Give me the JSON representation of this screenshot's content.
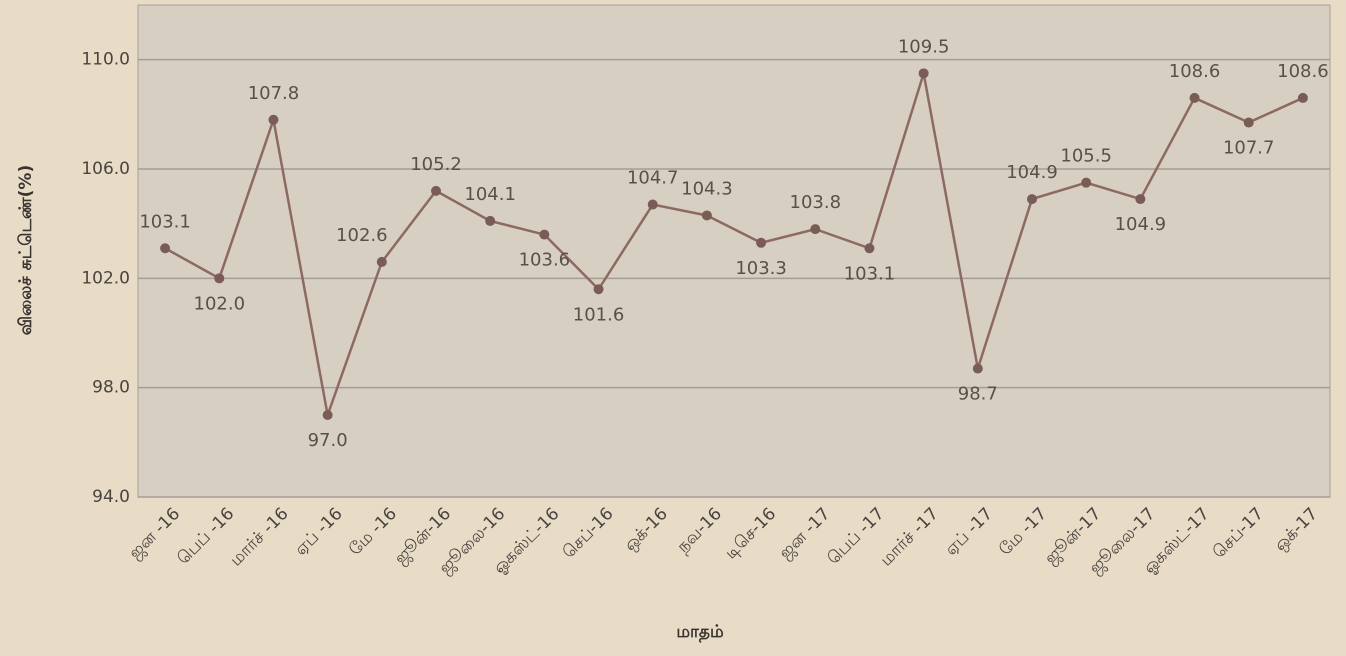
{
  "chart_data": {
    "type": "line",
    "y_label": "விலைச் சுட்டெண்(%)",
    "x_label": "மாதம்",
    "categories": [
      "ஜன -16",
      "பெப் -16",
      "மார்ச் -16",
      "ஏப் -16",
      "மே -16",
      "ஜூன்-16",
      "ஜூலை-16",
      "ஓகஸ்ட்-16",
      "செப்-16",
      "ஒக்-16",
      "நவ-16",
      "டிசெ-16",
      "ஜன -17",
      "பெப் -17",
      "மார்ச் -17",
      "ஏப் -17",
      "மே -17",
      "ஜூன்-17",
      "ஜூலை-17",
      "ஓகஸ்ட்-17",
      "செப்-17",
      "ஒக்-17"
    ],
    "values": [
      103.1,
      102.0,
      107.8,
      97.0,
      102.6,
      105.2,
      104.1,
      103.6,
      101.6,
      104.7,
      104.3,
      103.3,
      103.8,
      103.1,
      109.5,
      98.7,
      104.9,
      105.5,
      104.9,
      108.6,
      107.7,
      108.6
    ],
    "value_labels": [
      "103.1",
      "102.0",
      "107.8",
      "97.0",
      "102.6",
      "105.2",
      "104.1",
      "103.6",
      "101.6",
      "104.7",
      "104.3",
      "103.3",
      "103.8",
      "103.1",
      "109.5",
      "98.7",
      "104.9",
      "105.5",
      "104.9",
      "108.6",
      "107.7",
      "108.6"
    ],
    "color": "#8c6a62",
    "ylim": [
      94,
      112
    ],
    "yticks": [
      {
        "value": 94,
        "label": "94.0"
      },
      {
        "value": 98,
        "label": "98.0"
      },
      {
        "value": 102,
        "label": "102.0"
      },
      {
        "value": 106,
        "label": "106.0"
      },
      {
        "value": 110,
        "label": "110.0"
      }
    ],
    "grid": true
  }
}
